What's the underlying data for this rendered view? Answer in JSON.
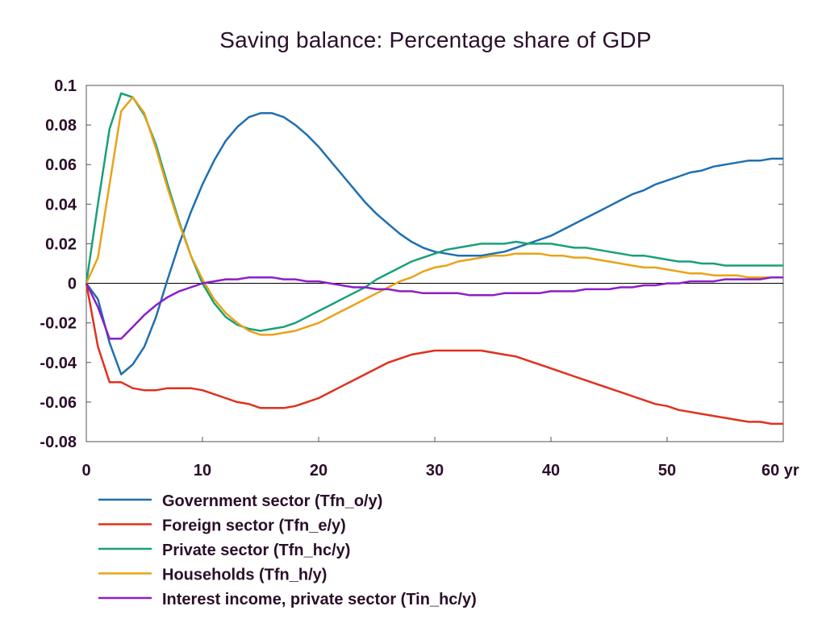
{
  "chart_data": {
    "type": "line",
    "title": "Saving balance: Percentage share of GDP",
    "xlabel": "",
    "ylabel": "",
    "x_unit": "yr",
    "xlim": [
      0,
      60
    ],
    "ylim": [
      -0.08,
      0.1
    ],
    "x_ticks": [
      0,
      10,
      20,
      30,
      40,
      50,
      60
    ],
    "x_tick_labels": [
      "0",
      "10",
      "20",
      "30",
      "40",
      "50",
      "60 yr"
    ],
    "y_ticks": [
      -0.08,
      -0.06,
      -0.04,
      -0.02,
      0,
      0.02,
      0.04,
      0.06,
      0.08,
      0.1
    ],
    "y_tick_labels": [
      "-0.08",
      "-0.06",
      "-0.04",
      "-0.02",
      "0",
      "0.02",
      "0.04",
      "0.06",
      "0.08",
      "0.1"
    ],
    "grid": false,
    "legend_position": "bottom",
    "x": [
      0,
      1,
      2,
      3,
      4,
      5,
      6,
      7,
      8,
      9,
      10,
      11,
      12,
      13,
      14,
      15,
      16,
      17,
      18,
      19,
      20,
      21,
      22,
      23,
      24,
      25,
      26,
      27,
      28,
      29,
      30,
      31,
      32,
      33,
      34,
      35,
      36,
      37,
      38,
      39,
      40,
      41,
      42,
      43,
      44,
      45,
      46,
      47,
      48,
      49,
      50,
      51,
      52,
      53,
      54,
      55,
      56,
      57,
      58,
      59,
      60
    ],
    "series": [
      {
        "name": "Government sector (Tfn_o/y)",
        "color": "#1f6fb0",
        "values": [
          0,
          -0.008,
          -0.03,
          -0.046,
          -0.041,
          -0.032,
          -0.017,
          0.002,
          0.02,
          0.036,
          0.05,
          0.062,
          0.072,
          0.079,
          0.084,
          0.086,
          0.086,
          0.084,
          0.08,
          0.075,
          0.069,
          0.062,
          0.055,
          0.048,
          0.041,
          0.035,
          0.03,
          0.025,
          0.021,
          0.018,
          0.016,
          0.015,
          0.014,
          0.014,
          0.014,
          0.015,
          0.016,
          0.018,
          0.02,
          0.022,
          0.024,
          0.027,
          0.03,
          0.033,
          0.036,
          0.039,
          0.042,
          0.045,
          0.047,
          0.05,
          0.052,
          0.054,
          0.056,
          0.057,
          0.059,
          0.06,
          0.061,
          0.062,
          0.062,
          0.063,
          0.063
        ]
      },
      {
        "name": "Foreign sector (Tfn_e/y)",
        "color": "#e0301e",
        "values": [
          0,
          -0.032,
          -0.05,
          -0.05,
          -0.053,
          -0.054,
          -0.054,
          -0.053,
          -0.053,
          -0.053,
          -0.054,
          -0.056,
          -0.058,
          -0.06,
          -0.061,
          -0.063,
          -0.063,
          -0.063,
          -0.062,
          -0.06,
          -0.058,
          -0.055,
          -0.052,
          -0.049,
          -0.046,
          -0.043,
          -0.04,
          -0.038,
          -0.036,
          -0.035,
          -0.034,
          -0.034,
          -0.034,
          -0.034,
          -0.034,
          -0.035,
          -0.036,
          -0.037,
          -0.039,
          -0.041,
          -0.043,
          -0.045,
          -0.047,
          -0.049,
          -0.051,
          -0.053,
          -0.055,
          -0.057,
          -0.059,
          -0.061,
          -0.062,
          -0.064,
          -0.065,
          -0.066,
          -0.067,
          -0.068,
          -0.069,
          -0.07,
          -0.07,
          -0.071,
          -0.071
        ]
      },
      {
        "name": "Private sector (Tfn_hc/y)",
        "color": "#19a07a",
        "values": [
          0,
          0.04,
          0.078,
          0.096,
          0.094,
          0.085,
          0.07,
          0.05,
          0.031,
          0.014,
          0,
          -0.01,
          -0.017,
          -0.021,
          -0.023,
          -0.024,
          -0.023,
          -0.022,
          -0.02,
          -0.017,
          -0.014,
          -0.011,
          -0.008,
          -0.005,
          -0.002,
          0.002,
          0.005,
          0.008,
          0.011,
          0.013,
          0.015,
          0.017,
          0.018,
          0.019,
          0.02,
          0.02,
          0.02,
          0.021,
          0.02,
          0.02,
          0.02,
          0.019,
          0.018,
          0.018,
          0.017,
          0.016,
          0.015,
          0.014,
          0.014,
          0.013,
          0.012,
          0.011,
          0.011,
          0.01,
          0.01,
          0.009,
          0.009,
          0.009,
          0.009,
          0.009,
          0.009
        ]
      },
      {
        "name": "Households (Tfn_h/y)",
        "color": "#e8a317",
        "values": [
          0,
          0.013,
          0.05,
          0.087,
          0.094,
          0.086,
          0.068,
          0.048,
          0.03,
          0.014,
          0.002,
          -0.008,
          -0.015,
          -0.02,
          -0.024,
          -0.026,
          -0.026,
          -0.025,
          -0.024,
          -0.022,
          -0.02,
          -0.017,
          -0.014,
          -0.011,
          -0.008,
          -0.005,
          -0.002,
          0.001,
          0.003,
          0.006,
          0.008,
          0.009,
          0.011,
          0.012,
          0.013,
          0.014,
          0.014,
          0.015,
          0.015,
          0.015,
          0.014,
          0.014,
          0.013,
          0.013,
          0.012,
          0.011,
          0.01,
          0.009,
          0.008,
          0.008,
          0.007,
          0.006,
          0.005,
          0.005,
          0.004,
          0.004,
          0.004,
          0.003,
          0.003,
          0.003,
          0.003
        ]
      },
      {
        "name": "Interest income, private sector (Tin_hc/y)",
        "color": "#8a1fc8",
        "values": [
          0,
          -0.012,
          -0.028,
          -0.028,
          -0.022,
          -0.016,
          -0.011,
          -0.007,
          -0.004,
          -0.002,
          0,
          0.001,
          0.002,
          0.002,
          0.003,
          0.003,
          0.003,
          0.002,
          0.002,
          0.001,
          0.001,
          0,
          -0.001,
          -0.002,
          -0.002,
          -0.003,
          -0.003,
          -0.004,
          -0.004,
          -0.005,
          -0.005,
          -0.005,
          -0.005,
          -0.006,
          -0.006,
          -0.006,
          -0.005,
          -0.005,
          -0.005,
          -0.005,
          -0.004,
          -0.004,
          -0.004,
          -0.003,
          -0.003,
          -0.003,
          -0.002,
          -0.002,
          -0.001,
          -0.001,
          0,
          0,
          0.001,
          0.001,
          0.001,
          0.002,
          0.002,
          0.002,
          0.002,
          0.003,
          0.003
        ]
      }
    ]
  }
}
